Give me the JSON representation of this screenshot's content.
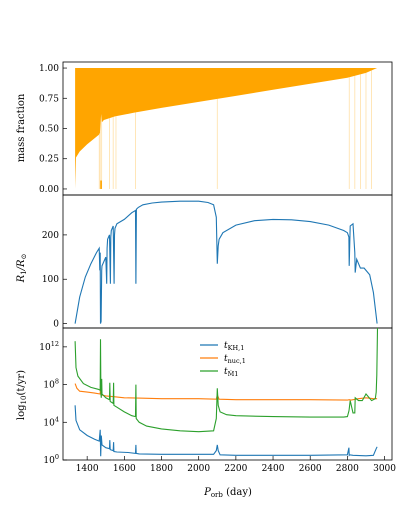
{
  "chart_data": [
    {
      "type": "area",
      "ylabel": "mass fraction",
      "ylim": [
        -0.05,
        1.05
      ],
      "yticks": [
        "0.00",
        "0.25",
        "0.50",
        "0.75",
        "1.00"
      ],
      "ytick_values": [
        0,
        0.25,
        0.5,
        0.75,
        1.0
      ],
      "xlim": [
        1270,
        3040
      ],
      "color": "#ffa500",
      "upper": [
        [
          1335,
          1.0
        ],
        [
          2960,
          1.0
        ]
      ],
      "lower": [
        [
          1335,
          0.0
        ],
        [
          1340,
          0.26
        ],
        [
          1360,
          0.31
        ],
        [
          1400,
          0.37
        ],
        [
          1440,
          0.42
        ],
        [
          1465,
          0.45
        ],
        [
          1470,
          0.47
        ],
        [
          1475,
          0.62
        ],
        [
          1478,
          0.55
        ],
        [
          1490,
          0.57
        ],
        [
          1550,
          0.6
        ],
        [
          1650,
          0.63
        ],
        [
          1800,
          0.67
        ],
        [
          2000,
          0.72
        ],
        [
          2200,
          0.77
        ],
        [
          2400,
          0.82
        ],
        [
          2600,
          0.87
        ],
        [
          2800,
          0.92
        ],
        [
          2900,
          0.96
        ],
        [
          2960,
          1.0
        ]
      ],
      "faint_lines": [
        1465,
        1470,
        1478,
        1520,
        1540,
        1555,
        1660,
        2100,
        2810,
        2840,
        2870,
        2900,
        2930
      ],
      "dip_marks": [
        [
          1475,
          0.0,
          0.07
        ]
      ]
    },
    {
      "type": "line",
      "ylabel": "R1/R⊙",
      "ylabel_parts": {
        "main": "R",
        "sub": "1",
        "rest": "/R",
        "sub2": "⊙"
      },
      "ylim": [
        -10,
        290
      ],
      "yticks": [
        "0",
        "100",
        "200"
      ],
      "ytick_values": [
        0,
        100,
        200
      ],
      "xlim": [
        1270,
        3040
      ],
      "color": "#1f77b4",
      "x": [
        1335,
        1360,
        1390,
        1420,
        1450,
        1465,
        1468,
        1470,
        1472,
        1475,
        1478,
        1480,
        1490,
        1500,
        1505,
        1507,
        1510,
        1520,
        1525,
        1527,
        1530,
        1540,
        1545,
        1547,
        1550,
        1560,
        1600,
        1640,
        1660,
        1662,
        1665,
        1675,
        1700,
        1750,
        1800,
        1900,
        2000,
        2050,
        2080,
        2095,
        2100,
        2105,
        2110,
        2130,
        2200,
        2300,
        2400,
        2500,
        2600,
        2700,
        2780,
        2800,
        2808,
        2810,
        2815,
        2830,
        2840,
        2842,
        2850,
        2870,
        2890,
        2920,
        2940,
        2960
      ],
      "y": [
        0,
        60,
        105,
        135,
        160,
        170,
        120,
        160,
        0,
        5,
        120,
        130,
        140,
        150,
        90,
        170,
        190,
        200,
        90,
        195,
        210,
        220,
        90,
        200,
        215,
        225,
        235,
        250,
        255,
        90,
        258,
        262,
        268,
        272,
        274,
        276,
        276,
        273,
        268,
        240,
        135,
        175,
        190,
        205,
        222,
        232,
        235,
        234,
        230,
        222,
        210,
        205,
        195,
        130,
        220,
        225,
        160,
        115,
        145,
        125,
        125,
        110,
        70,
        0
      ]
    },
    {
      "type": "line",
      "ylabel": "log10(t/yr)",
      "ylabel_parts": {
        "main": "log",
        "sub": "10",
        "rest": "(t/yr)"
      },
      "xlabel": "Porb (day)",
      "xlabel_parts": {
        "main": "P",
        "sub": "orb",
        "rest": " (day)"
      },
      "ylim": [
        0.0,
        14.0
      ],
      "yticks": [
        "10^0",
        "10^4",
        "10^8",
        "10^12"
      ],
      "ytick_values": [
        0,
        4,
        8,
        12
      ],
      "ytick_parts": [
        {
          "b": "10",
          "e": "0"
        },
        {
          "b": "10",
          "e": "4"
        },
        {
          "b": "10",
          "e": "8"
        },
        {
          "b": "10",
          "e": "12"
        }
      ],
      "xlim": [
        1270,
        3040
      ],
      "xticks": [
        "1400",
        "1600",
        "1800",
        "2000",
        "2200",
        "2400",
        "2600",
        "2800",
        "3000"
      ],
      "xtick_values": [
        1400,
        1600,
        1800,
        2000,
        2200,
        2400,
        2600,
        2800,
        3000
      ],
      "legend_position": "top-center",
      "series": [
        {
          "name": "tKH,1",
          "name_parts": {
            "main": "t",
            "sub": "KH,1"
          },
          "color": "#1f77b4",
          "x": [
            1335,
            1340,
            1360,
            1400,
            1440,
            1465,
            1470,
            1473,
            1476,
            1480,
            1500,
            1520,
            1522,
            1524,
            1540,
            1542,
            1544,
            1560,
            1620,
            1660,
            1662,
            1664,
            1680,
            1800,
            2000,
            2080,
            2095,
            2100,
            2105,
            2115,
            2200,
            2400,
            2600,
            2800,
            2808,
            2810,
            2812,
            2830,
            2900,
            2940,
            2955,
            2960
          ],
          "y": [
            5.8,
            4.2,
            3.2,
            2.6,
            2.2,
            2.0,
            3.2,
            0.4,
            2.6,
            1.6,
            1.3,
            1.2,
            2.1,
            1.1,
            1.0,
            1.9,
            0.9,
            0.85,
            0.8,
            0.7,
            1.6,
            0.7,
            0.65,
            0.6,
            0.6,
            0.6,
            1.0,
            1.6,
            1.0,
            0.55,
            0.5,
            0.5,
            0.5,
            0.55,
            1.3,
            0.5,
            0.55,
            0.5,
            0.45,
            0.5,
            1.2,
            1.4
          ]
        },
        {
          "name": "tnuc,1",
          "name_parts": {
            "main": "t",
            "sub": "nuc,1"
          },
          "color": "#ff7f0e",
          "x": [
            1335,
            1345,
            1360,
            1400,
            1440,
            1470,
            1473,
            1476,
            1500,
            1550,
            1600,
            1700,
            1800,
            2000,
            2095,
            2100,
            2110,
            2200,
            2400,
            2600,
            2800,
            2810,
            2820,
            2860,
            2900,
            2940,
            2960
          ],
          "y": [
            8.1,
            7.6,
            7.3,
            7.2,
            7.1,
            7.0,
            8.6,
            6.9,
            6.8,
            6.7,
            6.6,
            6.55,
            6.5,
            6.5,
            6.45,
            6.9,
            6.45,
            6.4,
            6.4,
            6.4,
            6.35,
            6.4,
            6.35,
            6.5,
            6.6,
            6.5,
            6.5
          ]
        },
        {
          "name": "tṀ1",
          "name_parts": {
            "main": "t",
            "sub": "Ṁ1"
          },
          "color": "#2ca02c",
          "x": [
            1335,
            1340,
            1350,
            1380,
            1420,
            1460,
            1470,
            1472,
            1474,
            1476,
            1478,
            1480,
            1490,
            1500,
            1520,
            1522,
            1524,
            1540,
            1542,
            1544,
            1560,
            1600,
            1640,
            1660,
            1662,
            1664,
            1680,
            1720,
            1800,
            1900,
            2000,
            2080,
            2095,
            2100,
            2105,
            2115,
            2150,
            2200,
            2400,
            2600,
            2780,
            2800,
            2808,
            2810,
            2815,
            2830,
            2840,
            2842,
            2860,
            2880,
            2900,
            2930,
            2950,
            2955,
            2958,
            2962
          ],
          "y": [
            12.6,
            9.8,
            8.9,
            8.1,
            7.7,
            7.5,
            7.4,
            12.8,
            7.0,
            6.6,
            8.6,
            7.0,
            6.8,
            6.6,
            6.4,
            8.2,
            6.2,
            6.0,
            8.2,
            5.8,
            5.6,
            5.1,
            4.7,
            4.6,
            8.0,
            4.4,
            4.0,
            3.6,
            3.3,
            3.1,
            3.0,
            3.1,
            4.4,
            7.6,
            5.8,
            5.1,
            4.8,
            4.7,
            4.6,
            4.55,
            4.55,
            4.6,
            5.2,
            5.4,
            6.3,
            5.0,
            5.0,
            6.6,
            6.3,
            6.3,
            7.0,
            6.3,
            6.5,
            7.2,
            9.0,
            14.0
          ]
        }
      ]
    }
  ]
}
